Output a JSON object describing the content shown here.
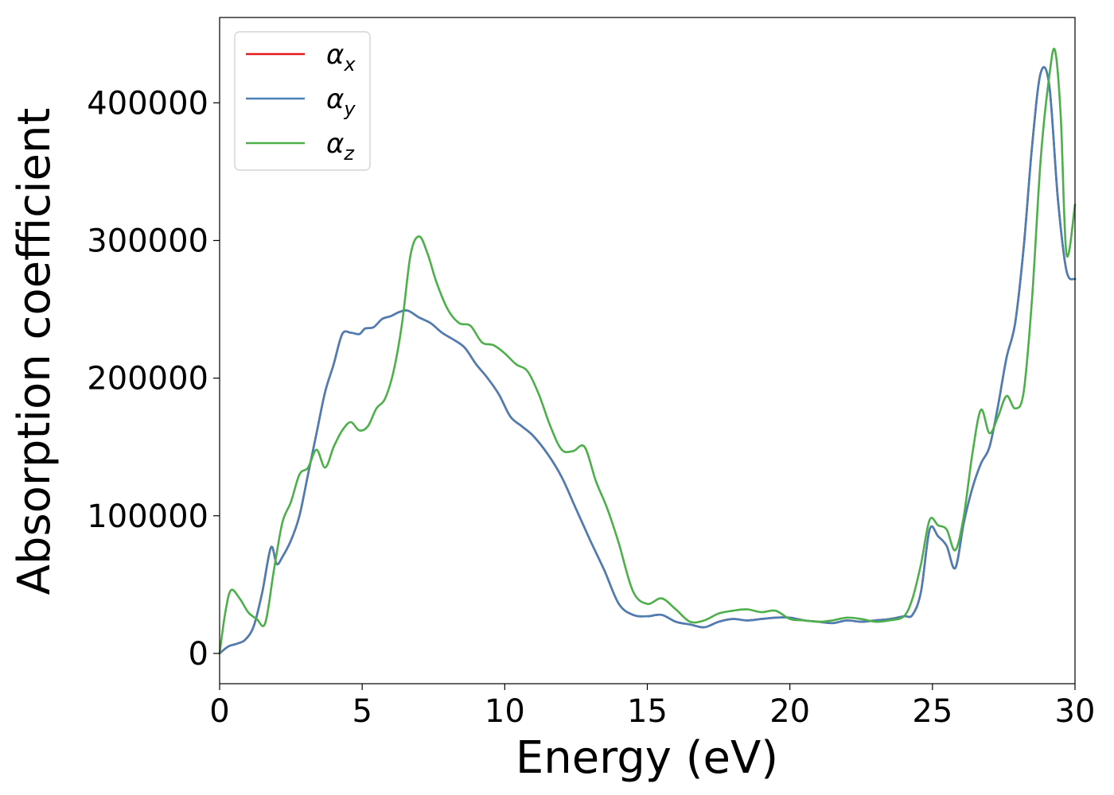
{
  "chart_data": {
    "type": "line",
    "xlabel": "Energy (eV)",
    "ylabel": "Absorption coefficient",
    "xlim": [
      0,
      30
    ],
    "ylim": [
      -22000,
      462000
    ],
    "xticks": [
      0,
      5,
      10,
      15,
      20,
      25,
      30
    ],
    "xtick_labels": [
      "0",
      "5",
      "10",
      "15",
      "20",
      "25",
      "30"
    ],
    "yticks": [
      0,
      100000,
      200000,
      300000,
      400000
    ],
    "ytick_labels": [
      "0",
      "100000",
      "200000",
      "300000",
      "400000"
    ],
    "grid": false,
    "legend_position": "top-left",
    "series": [
      {
        "name": "α_x",
        "legend_symbol": "α",
        "legend_sub": "x",
        "color": "#e41a1c",
        "x": [
          0,
          0.3,
          0.6,
          0.9,
          1.2,
          1.5,
          1.8,
          2.0,
          2.2,
          2.5,
          2.8,
          3.1,
          3.4,
          3.7,
          4.0,
          4.3,
          4.6,
          4.9,
          5.1,
          5.4,
          5.7,
          6.0,
          6.3,
          6.6,
          7.0,
          7.4,
          7.8,
          8.2,
          8.6,
          9.0,
          9.4,
          9.8,
          10.2,
          10.6,
          11.0,
          11.5,
          12.0,
          12.5,
          13.0,
          13.5,
          14.0,
          14.5,
          15.0,
          15.5,
          16.0,
          16.5,
          17.0,
          17.5,
          18.0,
          18.5,
          19.0,
          19.5,
          20.0,
          20.5,
          21.0,
          21.5,
          22.0,
          22.5,
          23.0,
          23.5,
          24.0,
          24.3,
          24.6,
          24.9,
          25.2,
          25.5,
          25.8,
          26.1,
          26.4,
          26.7,
          27.0,
          27.3,
          27.6,
          27.9,
          28.2,
          28.5,
          28.8,
          29.1,
          29.4,
          29.7,
          30.0
        ],
        "values": [
          0,
          5000,
          7000,
          10000,
          20000,
          45000,
          77000,
          65000,
          70000,
          82000,
          100000,
          130000,
          160000,
          190000,
          210000,
          232000,
          233000,
          232000,
          236000,
          237000,
          243000,
          245000,
          248000,
          249000,
          244000,
          240000,
          233000,
          228000,
          222000,
          210000,
          200000,
          188000,
          172000,
          165000,
          158000,
          145000,
          128000,
          105000,
          82000,
          60000,
          36000,
          28000,
          27000,
          28000,
          23000,
          21000,
          19000,
          23000,
          25000,
          24000,
          25000,
          26000,
          26000,
          24000,
          23000,
          22000,
          24000,
          23000,
          24000,
          25000,
          27000,
          28000,
          45000,
          90000,
          85000,
          78000,
          62000,
          95000,
          120000,
          138000,
          150000,
          180000,
          215000,
          240000,
          295000,
          370000,
          422000,
          412000,
          330000,
          278000,
          272000
        ]
      },
      {
        "name": "α_y",
        "legend_symbol": "α",
        "legend_sub": "y",
        "color": "#4a7fb5",
        "x": [
          0,
          0.3,
          0.6,
          0.9,
          1.2,
          1.5,
          1.8,
          2.0,
          2.2,
          2.5,
          2.8,
          3.1,
          3.4,
          3.7,
          4.0,
          4.3,
          4.6,
          4.9,
          5.1,
          5.4,
          5.7,
          6.0,
          6.3,
          6.6,
          7.0,
          7.4,
          7.8,
          8.2,
          8.6,
          9.0,
          9.4,
          9.8,
          10.2,
          10.6,
          11.0,
          11.5,
          12.0,
          12.5,
          13.0,
          13.5,
          14.0,
          14.5,
          15.0,
          15.5,
          16.0,
          16.5,
          17.0,
          17.5,
          18.0,
          18.5,
          19.0,
          19.5,
          20.0,
          20.5,
          21.0,
          21.5,
          22.0,
          22.5,
          23.0,
          23.5,
          24.0,
          24.3,
          24.6,
          24.9,
          25.2,
          25.5,
          25.8,
          26.1,
          26.4,
          26.7,
          27.0,
          27.3,
          27.6,
          27.9,
          28.2,
          28.5,
          28.8,
          29.1,
          29.4,
          29.7,
          30.0
        ],
        "values": [
          0,
          5000,
          7000,
          10000,
          20000,
          45000,
          77000,
          65000,
          70000,
          82000,
          100000,
          130000,
          160000,
          190000,
          210000,
          232000,
          233000,
          232000,
          236000,
          237000,
          243000,
          245000,
          248000,
          249000,
          244000,
          240000,
          233000,
          228000,
          222000,
          210000,
          200000,
          188000,
          172000,
          165000,
          158000,
          145000,
          128000,
          105000,
          82000,
          60000,
          36000,
          28000,
          27000,
          28000,
          23000,
          21000,
          19000,
          23000,
          25000,
          24000,
          25000,
          26000,
          26000,
          24000,
          23000,
          22000,
          24000,
          23000,
          24000,
          25000,
          27000,
          28000,
          45000,
          90000,
          85000,
          78000,
          62000,
          95000,
          120000,
          138000,
          150000,
          180000,
          215000,
          240000,
          295000,
          370000,
          422000,
          412000,
          330000,
          278000,
          272000
        ]
      },
      {
        "name": "α_z",
        "legend_symbol": "α",
        "legend_sub": "z",
        "color": "#4daf4a",
        "x": [
          0,
          0.2,
          0.4,
          0.7,
          1.0,
          1.3,
          1.6,
          1.9,
          2.2,
          2.5,
          2.8,
          3.1,
          3.4,
          3.7,
          4.0,
          4.3,
          4.6,
          4.9,
          5.2,
          5.5,
          5.8,
          6.1,
          6.4,
          6.7,
          7.0,
          7.3,
          7.6,
          8.0,
          8.4,
          8.8,
          9.2,
          9.6,
          10.0,
          10.4,
          10.8,
          11.2,
          11.6,
          12.0,
          12.4,
          12.8,
          13.2,
          13.6,
          14.0,
          14.5,
          15.0,
          15.5,
          16.0,
          16.5,
          17.0,
          17.5,
          18.0,
          18.5,
          19.0,
          19.5,
          20.0,
          20.5,
          21.0,
          21.5,
          22.0,
          22.5,
          23.0,
          23.5,
          24.0,
          24.3,
          24.6,
          24.9,
          25.2,
          25.5,
          25.8,
          26.1,
          26.4,
          26.7,
          27.0,
          27.3,
          27.6,
          27.9,
          28.2,
          28.5,
          28.8,
          29.1,
          29.3,
          29.5,
          29.7,
          30.0
        ],
        "values": [
          0,
          30000,
          46000,
          40000,
          30000,
          25000,
          22000,
          60000,
          95000,
          110000,
          130000,
          135000,
          148000,
          135000,
          150000,
          162000,
          168000,
          162000,
          165000,
          178000,
          185000,
          205000,
          240000,
          290000,
          303000,
          290000,
          270000,
          250000,
          240000,
          238000,
          226000,
          224000,
          218000,
          210000,
          205000,
          188000,
          165000,
          148000,
          147000,
          150000,
          125000,
          105000,
          80000,
          45000,
          36000,
          40000,
          32000,
          23000,
          24000,
          29000,
          31000,
          32000,
          30000,
          31000,
          25000,
          24000,
          23000,
          24000,
          26000,
          25000,
          23000,
          24000,
          27000,
          40000,
          65000,
          97000,
          93000,
          90000,
          75000,
          100000,
          145000,
          177000,
          160000,
          172000,
          187000,
          178000,
          190000,
          260000,
          360000,
          420000,
          438000,
          390000,
          290000,
          326000
        ]
      }
    ]
  }
}
